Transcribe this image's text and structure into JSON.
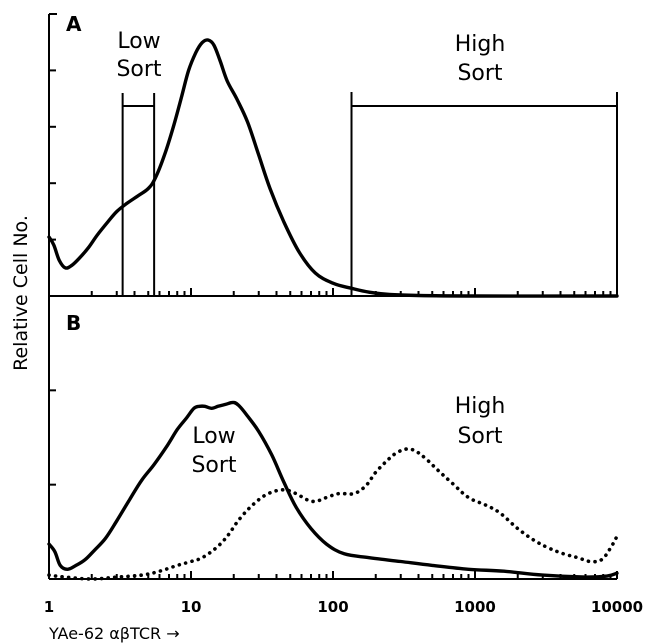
{
  "chart_data": [
    {
      "panel": "A",
      "type": "line",
      "xscale": "log",
      "xlim": [
        1,
        10000
      ],
      "series": [
        {
          "style": "solid",
          "x": [
            1.0,
            1.08,
            1.18,
            1.3,
            1.45,
            1.65,
            1.9,
            2.2,
            2.6,
            3.0,
            3.5,
            4.2,
            5.0,
            5.6,
            6.5,
            7.5,
            8.6,
            9.6,
            10.8,
            12.0,
            13.2,
            14.5,
            16.0,
            18.0,
            21.0,
            25.0,
            30.0,
            36.0,
            45.0,
            58.0,
            75.0,
            100.0,
            135.0,
            180.0,
            250.0,
            400.0,
            1000.0,
            10000.0
          ],
          "y": [
            0.23,
            0.2,
            0.14,
            0.11,
            0.12,
            0.15,
            0.19,
            0.24,
            0.29,
            0.33,
            0.36,
            0.39,
            0.42,
            0.46,
            0.55,
            0.66,
            0.78,
            0.88,
            0.95,
            0.99,
            1.0,
            0.98,
            0.92,
            0.84,
            0.77,
            0.68,
            0.55,
            0.42,
            0.29,
            0.17,
            0.09,
            0.05,
            0.03,
            0.015,
            0.006,
            0.002,
            0.0,
            0.0
          ]
        }
      ],
      "gates": [
        {
          "x0": 3.3,
          "x1": 5.5
        },
        {
          "x0": 135,
          "x1": 10000
        }
      ],
      "annotations": [
        "Low",
        "Sort",
        "High",
        "Sort"
      ]
    },
    {
      "panel": "B",
      "type": "line",
      "xscale": "log",
      "xlim": [
        1,
        10000
      ],
      "series": [
        {
          "style": "solid",
          "x": [
            1.0,
            1.1,
            1.2,
            1.35,
            1.55,
            1.8,
            2.1,
            2.5,
            3.0,
            3.7,
            4.5,
            5.5,
            6.7,
            8.0,
            9.3,
            10.5,
            11.5,
            12.5,
            14.0,
            15.5,
            17.5,
            20.0,
            22.0,
            25.0,
            30.0,
            37.0,
            45.0,
            55.0,
            70.0,
            90.0,
            120.0,
            180.0,
            300.0,
            500.0,
            900.0,
            1600.0,
            3000.0,
            6000.0,
            8500.0,
            10000.0
          ],
          "y": [
            0.18,
            0.14,
            0.07,
            0.05,
            0.07,
            0.1,
            0.15,
            0.21,
            0.3,
            0.41,
            0.51,
            0.59,
            0.68,
            0.77,
            0.83,
            0.88,
            0.89,
            0.89,
            0.88,
            0.89,
            0.9,
            0.91,
            0.89,
            0.84,
            0.76,
            0.64,
            0.5,
            0.37,
            0.26,
            0.18,
            0.13,
            0.11,
            0.09,
            0.07,
            0.05,
            0.04,
            0.02,
            0.01,
            0.015,
            0.03
          ]
        },
        {
          "style": "dotted",
          "x": [
            1.0,
            1.3,
            2.0,
            3.0,
            4.5,
            6.0,
            8.0,
            10.0,
            12.0,
            15.0,
            18.0,
            22.0,
            28.0,
            35.0,
            45.0,
            55.0,
            65.0,
            75.0,
            90.0,
            110.0,
            140.0,
            170.0,
            200.0,
            240.0,
            280.0,
            330.0,
            380.0,
            450.0,
            550.0,
            700.0,
            900.0,
            1200.0,
            1500.0,
            2000.0,
            2600.0,
            3300.0,
            4200.0,
            5300.0,
            6500.0,
            7800.0,
            9000.0,
            10000.0
          ],
          "y": [
            0.02,
            0.01,
            0.0,
            0.01,
            0.02,
            0.04,
            0.07,
            0.09,
            0.11,
            0.16,
            0.22,
            0.31,
            0.39,
            0.44,
            0.46,
            0.44,
            0.41,
            0.4,
            0.42,
            0.44,
            0.44,
            0.48,
            0.55,
            0.61,
            0.65,
            0.67,
            0.66,
            0.62,
            0.56,
            0.49,
            0.42,
            0.38,
            0.34,
            0.26,
            0.2,
            0.16,
            0.13,
            0.11,
            0.09,
            0.1,
            0.16,
            0.22
          ]
        }
      ],
      "annotations": [
        "Low",
        "Sort",
        "High",
        "Sort"
      ]
    }
  ],
  "axes": {
    "x_tick_labels": [
      "1",
      "10",
      "100",
      "1000",
      "10000"
    ],
    "xlabel": "YAe-62 αβTCR →",
    "ylabel": "Relative Cell No."
  },
  "panel_a": {
    "label": "A",
    "low_line1": "Low",
    "low_line2": "Sort",
    "high_line1": "High",
    "high_line2": "Sort"
  },
  "panel_b": {
    "label": "B",
    "low_line1": "Low",
    "low_line2": "Sort",
    "high_line1": "High",
    "high_line2": "Sort"
  }
}
